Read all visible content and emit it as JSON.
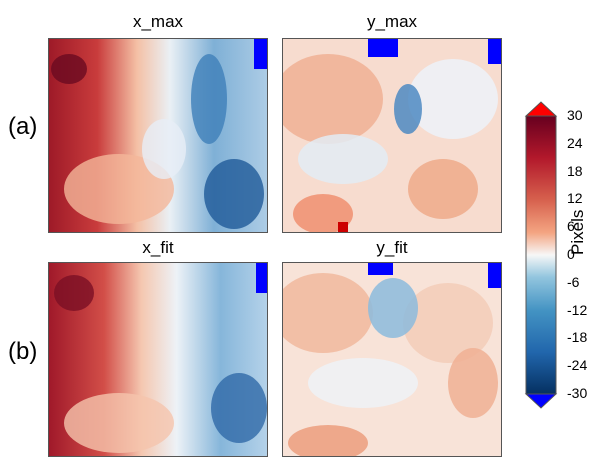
{
  "chart_data": [
    {
      "type": "heatmap",
      "title": "x_max",
      "row_label": "(a)",
      "dominant": "red-left / blue-right",
      "zlim": [
        -30,
        30
      ]
    },
    {
      "type": "heatmap",
      "title": "y_max",
      "row_label": "(a)",
      "dominant": "mostly light red with blue patches top",
      "zlim": [
        -30,
        30
      ]
    },
    {
      "type": "heatmap",
      "title": "x_fit",
      "row_label": "(b)",
      "dominant": "red-left / blue-right",
      "zlim": [
        -30,
        30
      ]
    },
    {
      "type": "heatmap",
      "title": "y_fit",
      "row_label": "(b)",
      "dominant": "mostly light red with blue patches top",
      "zlim": [
        -30,
        30
      ]
    }
  ],
  "row_labels": [
    "(a)",
    "(b)"
  ],
  "panel_titles": [
    "x_max",
    "y_max",
    "x_fit",
    "y_fit"
  ],
  "colorbar": {
    "label": "Pixels",
    "ticks": [
      "30",
      "24",
      "18",
      "12",
      "6",
      "0",
      "-6",
      "-12",
      "-18",
      "-24",
      "-30"
    ],
    "range": [
      -30,
      30
    ],
    "colors": {
      "top": "#67001f",
      "mid": "#f7f7f7",
      "bottom": "#053061",
      "over": "#ff0000",
      "under": "#0000ff"
    }
  }
}
